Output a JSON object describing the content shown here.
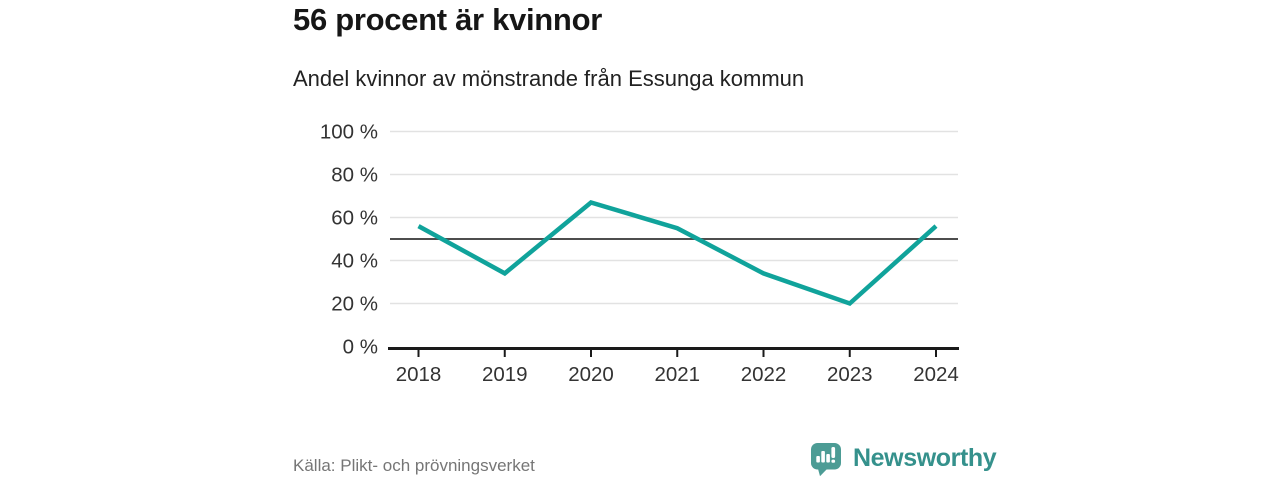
{
  "header": {
    "title": "56 procent är kvinnor",
    "subtitle": "Andel kvinnor av mönstrande från Essunga kommun"
  },
  "footer": {
    "source": "Källa: Plikt- och prövningsverket",
    "brand": "Newsworthy",
    "logo_icon": "speech-bubble-bar-chart-icon"
  },
  "colors": {
    "line": "#10A39B",
    "grid": "#E2E2E2",
    "reference_line": "#4D4D4D",
    "axis": "#1A1A1A",
    "tick_label": "#333333",
    "source_text": "#767676",
    "logo_bubble": "#4C9C95",
    "wordmark": "#35918C"
  },
  "chart_data": {
    "type": "line",
    "x": [
      2018,
      2019,
      2020,
      2021,
      2022,
      2023,
      2024
    ],
    "series": [
      {
        "name": "Andel kvinnor av mönstrande",
        "values": [
          56,
          34,
          67,
          55,
          34,
          20,
          56
        ]
      }
    ],
    "title": "56 procent är kvinnor",
    "subtitle": "Andel kvinnor av mönstrande från Essunga kommun",
    "xlabel": "",
    "ylabel": "",
    "ylim": [
      0,
      100
    ],
    "y_ticks": [
      0,
      20,
      40,
      60,
      80,
      100
    ],
    "y_tick_suffix": " %",
    "reference_line": 50,
    "grid": true,
    "legend": false,
    "line_width": 4.5
  }
}
